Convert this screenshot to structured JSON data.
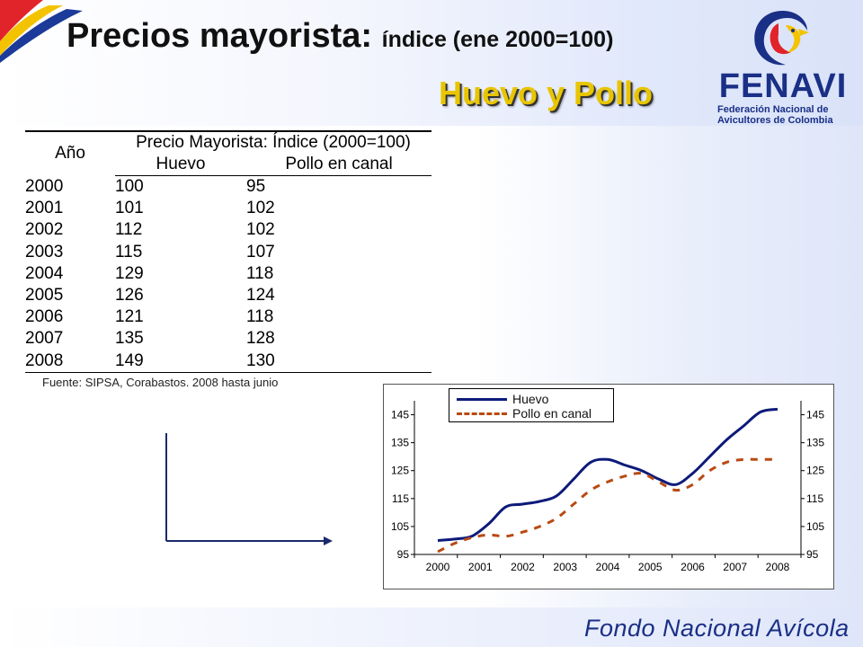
{
  "header": {
    "title_main": "Precios mayorista:",
    "title_sub": "índice (ene 2000=100)",
    "section_title": "Huevo y Pollo"
  },
  "logo": {
    "wordmark": "FENAVI",
    "tagline_line1": "Federación Nacional de",
    "tagline_line2": "Avicultores de Colombia"
  },
  "table": {
    "col_year": "Año",
    "group_header": "Precio Mayorista: Índice (2000=100)",
    "col_huevo": "Huevo",
    "col_pollo": "Pollo en canal",
    "rows": [
      {
        "year": "2000",
        "huevo": "100",
        "pollo": "95"
      },
      {
        "year": "2001",
        "huevo": "101",
        "pollo": "102"
      },
      {
        "year": "2002",
        "huevo": "112",
        "pollo": "102"
      },
      {
        "year": "2003",
        "huevo": "115",
        "pollo": "107"
      },
      {
        "year": "2004",
        "huevo": "129",
        "pollo": "118"
      },
      {
        "year": "2005",
        "huevo": "126",
        "pollo": "124"
      },
      {
        "year": "2006",
        "huevo": "121",
        "pollo": "118"
      },
      {
        "year": "2007",
        "huevo": "135",
        "pollo": "128"
      },
      {
        "year": "2008",
        "huevo": "149",
        "pollo": "130"
      }
    ]
  },
  "source_note": "Fuente: SIPSA, Corabastos. 2008 hasta junio",
  "footer": {
    "brand": "Fondo Nacional Avícola"
  },
  "colors": {
    "huevo_line": "#0d1a7a",
    "pollo_line": "#b84a12",
    "title_accent": "#e8c500",
    "brand_blue": "#1a2f86"
  },
  "chart_data": {
    "type": "line",
    "title": "",
    "xlabel": "",
    "ylabel": "",
    "x": [
      "2000",
      "2001",
      "2002",
      "2003",
      "2004",
      "2005",
      "2006",
      "2007",
      "2008"
    ],
    "y_ticks": [
      95,
      105,
      115,
      125,
      135,
      145
    ],
    "ylim": [
      95,
      150
    ],
    "y_axis_both_sides": true,
    "grid": false,
    "legend_position": "top-left",
    "series": [
      {
        "name": "Huevo",
        "style": "solid",
        "x": [
          2000.0,
          2000.4,
          2000.8,
          2001.2,
          2001.6,
          2002.0,
          2002.4,
          2002.8,
          2003.2,
          2003.6,
          2004.0,
          2004.4,
          2004.8,
          2005.2,
          2005.6,
          2006.0,
          2006.4,
          2006.8,
          2007.2,
          2007.6,
          2008.0
        ],
        "y": [
          100,
          100.5,
          101.5,
          106,
          112,
          113,
          114,
          116,
          122,
          128,
          129,
          127,
          125,
          122,
          120,
          124,
          130,
          136,
          141,
          146,
          147
        ]
      },
      {
        "name": "Pollo en canal",
        "style": "dashed",
        "x": [
          2000.0,
          2000.4,
          2000.8,
          2001.2,
          2001.6,
          2002.0,
          2002.4,
          2002.8,
          2003.2,
          2003.6,
          2004.0,
          2004.4,
          2004.8,
          2005.2,
          2005.6,
          2006.0,
          2006.4,
          2006.8,
          2007.2,
          2007.6,
          2008.0
        ],
        "y": [
          96,
          99,
          101,
          102,
          101.5,
          103,
          105,
          108,
          113,
          118,
          121,
          123,
          124,
          121,
          118,
          120,
          125,
          128,
          129,
          129,
          129
        ]
      }
    ]
  }
}
